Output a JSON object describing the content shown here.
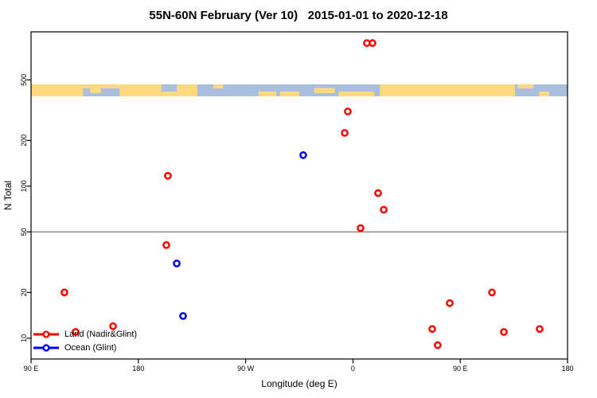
{
  "chart_data": {
    "type": "scatter",
    "title": "55N-60N February (Ver 10)   2015-01-01 to 2020-12-18",
    "xlabel": "Longitude (deg E)",
    "ylabel": "N Total",
    "y_scale": "log10",
    "y_range": [
      7.3,
      1035
    ],
    "x_axis_deg_range": [
      90,
      540
    ],
    "x_ticks": [
      {
        "deg": 90,
        "label": "90 E"
      },
      {
        "deg": 180,
        "label": "180"
      },
      {
        "deg": 270,
        "label": "90 W"
      },
      {
        "deg": 360,
        "label": "0"
      },
      {
        "deg": 450,
        "label": "90 E"
      },
      {
        "deg": 540,
        "label": "180"
      }
    ],
    "y_ticks": [
      {
        "value": 10,
        "label": "10"
      },
      {
        "value": 20,
        "label": "20"
      },
      {
        "value": 50,
        "label": "50"
      },
      {
        "value": 100,
        "label": "100"
      },
      {
        "value": 200,
        "label": "200"
      },
      {
        "value": 500,
        "label": "500"
      }
    ],
    "reference_line_y": 50,
    "grid": false,
    "legend_position": "bottom-left",
    "colors": {
      "reference_line": "#8a8a8a",
      "axis": "#000000",
      "background": "#ffffff"
    },
    "series": [
      {
        "name": "Land (Nadir&Glint)",
        "color": "#FF0000",
        "marker": "open-circle",
        "points": [
          {
            "x_axis_deg": 371.7,
            "n": 873
          },
          {
            "x_axis_deg": 376.4,
            "n": 873
          },
          {
            "x_axis_deg": 355.7,
            "n": 310
          },
          {
            "x_axis_deg": 353.1,
            "n": 224
          },
          {
            "x_axis_deg": 204.8,
            "n": 117
          },
          {
            "x_axis_deg": 381.1,
            "n": 90
          },
          {
            "x_axis_deg": 385.8,
            "n": 70
          },
          {
            "x_axis_deg": 366.4,
            "n": 53
          },
          {
            "x_axis_deg": 203.5,
            "n": 41
          },
          {
            "x_axis_deg": 118.0,
            "n": 20
          },
          {
            "x_axis_deg": 127.4,
            "n": 11
          },
          {
            "x_axis_deg": 158.8,
            "n": 12
          },
          {
            "x_axis_deg": 426.5,
            "n": 11.5
          },
          {
            "x_axis_deg": 431.1,
            "n": 9
          },
          {
            "x_axis_deg": 441.2,
            "n": 17
          },
          {
            "x_axis_deg": 476.6,
            "n": 20
          },
          {
            "x_axis_deg": 486.6,
            "n": 11
          },
          {
            "x_axis_deg": 516.6,
            "n": 11.5
          }
        ]
      },
      {
        "name": "Ocean (Glint)",
        "color": "#0000FF",
        "marker": "open-circle",
        "points": [
          {
            "x_axis_deg": 318.3,
            "n": 160
          },
          {
            "x_axis_deg": 212.2,
            "n": 31
          },
          {
            "x_axis_deg": 217.5,
            "n": 14
          }
        ]
      }
    ],
    "map_strip": {
      "land_color": "#FDD97E",
      "ocean_color": "#A9BFDD",
      "land_patches": [
        {
          "x0": 0.0,
          "x1": 0.097,
          "band": "full"
        },
        {
          "x0": 0.097,
          "x1": 0.165,
          "band": "top"
        },
        {
          "x0": 0.11,
          "x1": 0.13,
          "band": "mid"
        },
        {
          "x0": 0.165,
          "x1": 0.243,
          "band": "full"
        },
        {
          "x0": 0.243,
          "x1": 0.272,
          "band": "bottom"
        },
        {
          "x0": 0.272,
          "x1": 0.31,
          "band": "full"
        },
        {
          "x0": 0.34,
          "x1": 0.358,
          "band": "top"
        },
        {
          "x0": 0.424,
          "x1": 0.457,
          "band": "bottom"
        },
        {
          "x0": 0.464,
          "x1": 0.5,
          "band": "bottom"
        },
        {
          "x0": 0.528,
          "x1": 0.566,
          "band": "mid"
        },
        {
          "x0": 0.573,
          "x1": 0.64,
          "band": "bottom"
        },
        {
          "x0": 0.65,
          "x1": 0.902,
          "band": "full"
        },
        {
          "x0": 0.907,
          "x1": 0.937,
          "band": "top"
        },
        {
          "x0": 0.947,
          "x1": 0.966,
          "band": "bottom"
        }
      ]
    }
  }
}
